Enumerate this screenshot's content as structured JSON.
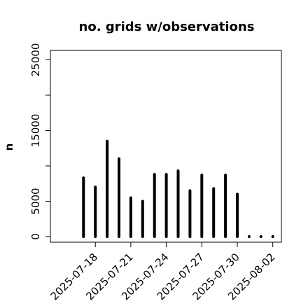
{
  "chart_data": {
    "type": "bar",
    "title": "no. grids w/observations",
    "xlabel": "",
    "ylabel": "n",
    "ylim": [
      0,
      27000
    ],
    "y_ticks": [
      0,
      5000,
      15000,
      25000
    ],
    "y_tick_labels": [
      "0",
      "5000",
      "15000",
      "25000"
    ],
    "x_ticks": [
      {
        "date": "2025-07-18",
        "label": "2025-07-18",
        "color": "#000000"
      },
      {
        "date": "2025-07-21",
        "label": "2025-07-21",
        "color": "#000000"
      },
      {
        "date": "2025-07-24",
        "label": "2025-07-24",
        "color": "#228B22"
      },
      {
        "date": "2025-07-27",
        "label": "2025-07-27",
        "color": "#000000"
      },
      {
        "date": "2025-07-30",
        "label": "2025-07-30",
        "color": "#000000"
      },
      {
        "date": "2025-08-02",
        "label": "2025-08-02",
        "color": "#000000"
      }
    ],
    "x_range": [
      "2025-07-15",
      "2025-08-04"
    ],
    "bar_color": "#000000",
    "bars": [
      {
        "date": "2025-07-17",
        "value": 8300
      },
      {
        "date": "2025-07-18",
        "value": 7000
      },
      {
        "date": "2025-07-19",
        "value": 13500
      },
      {
        "date": "2025-07-20",
        "value": 11000
      },
      {
        "date": "2025-07-21",
        "value": 5500
      },
      {
        "date": "2025-07-22",
        "value": 5000
      },
      {
        "date": "2025-07-23",
        "value": 8800
      },
      {
        "date": "2025-07-24",
        "value": 8800
      },
      {
        "date": "2025-07-25",
        "value": 9300
      },
      {
        "date": "2025-07-26",
        "value": 6500
      },
      {
        "date": "2025-07-27",
        "value": 8700
      },
      {
        "date": "2025-07-28",
        "value": 6800
      },
      {
        "date": "2025-07-29",
        "value": 8700
      },
      {
        "date": "2025-07-30",
        "value": 6000
      },
      {
        "date": "2025-07-31",
        "value": 0
      },
      {
        "date": "2025-08-01",
        "value": 0
      },
      {
        "date": "2025-08-02",
        "value": 0
      }
    ],
    "grid": false
  }
}
